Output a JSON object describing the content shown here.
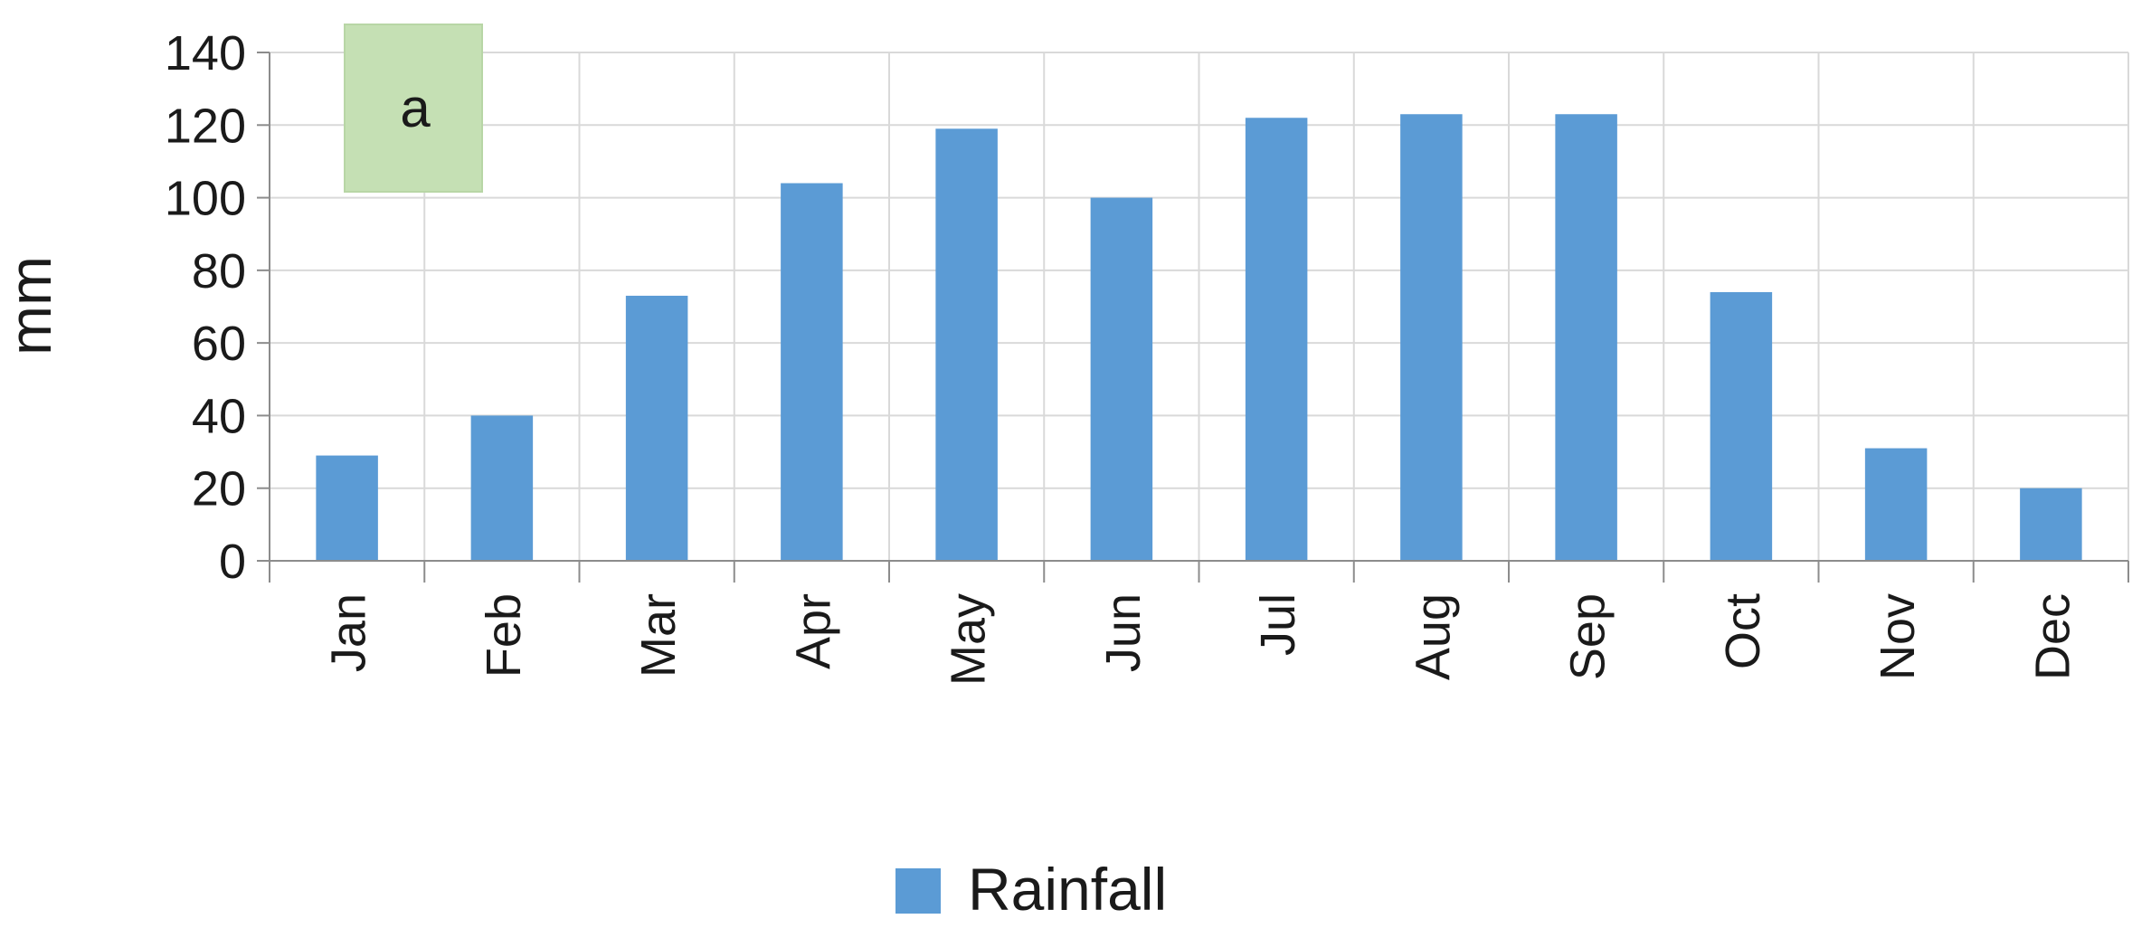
{
  "chart_data": {
    "type": "bar",
    "panel_label": "a",
    "categories": [
      "Jan",
      "Feb",
      "Mar",
      "Apr",
      "May",
      "Jun",
      "Jul",
      "Aug",
      "Sep",
      "Oct",
      "Nov",
      "Dec"
    ],
    "series": [
      {
        "name": "Rainfall",
        "color": "#5b9bd5",
        "values": [
          29,
          40,
          73,
          104,
          119,
          100,
          122,
          123,
          123,
          74,
          31,
          20
        ]
      }
    ],
    "title": "",
    "xlabel": "",
    "ylabel": "mm",
    "ylim": [
      0,
      140
    ],
    "yticks": [
      0,
      20,
      40,
      60,
      80,
      100,
      120,
      140
    ],
    "grid": true,
    "legend_position": "bottom-center",
    "panel_label_color": "#c5e0b4"
  }
}
